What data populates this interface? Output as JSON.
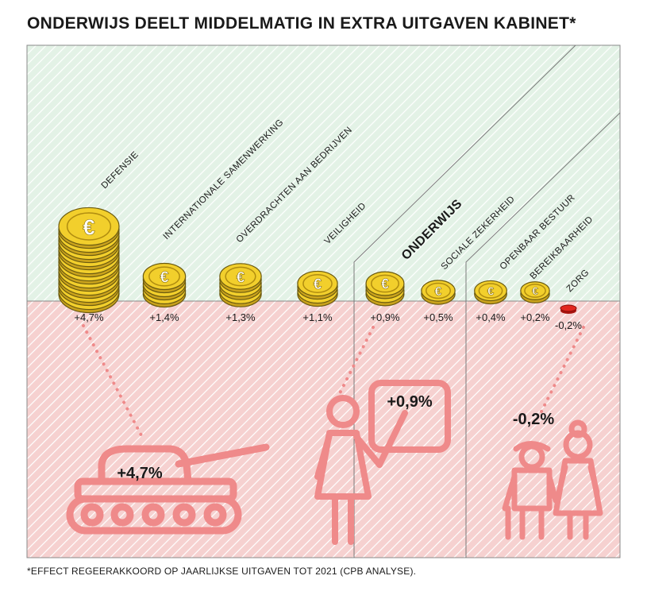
{
  "title": "ONDERWIJS DEELT MIDDELMATIG IN EXTRA UITGAVEN KABINET*",
  "footnote": "*EFFECT REGEERAKKOORD OP JAARLIJKSE UITGAVEN TOT 2021 (CPB ANALYSE).",
  "colors": {
    "positive_bg": "#e3f2e6",
    "negative_bg": "#f6d1d0",
    "coin_gold": "#f2cf2c",
    "coin_red": "#e2271f",
    "illustration": "#ef8a8a"
  },
  "chart_data": {
    "type": "bar",
    "categories": [
      "DEFENSIE",
      "INTERNATIONALE SAMENWERKING",
      "OVERDRACHTEN AAN BEDRIJVEN",
      "VEILIGHEID",
      "ONDERWIJS",
      "SOCIALE ZEKERHEID",
      "OPENBAAR BESTUUR",
      "BEREIKBAARHEID",
      "ZORG"
    ],
    "values": [
      4.7,
      1.4,
      1.3,
      1.1,
      0.9,
      0.5,
      0.4,
      0.2,
      -0.2
    ],
    "value_labels": [
      "+4,7%",
      "+1,4%",
      "+1,3%",
      "+1,1%",
      "+0,9%",
      "+0,5%",
      "+0,4%",
      "+0,2%",
      "-0,2%"
    ],
    "unit": "%",
    "highlight": "ONDERWIJS",
    "encoding": "coin stacks",
    "callouts": [
      {
        "category": "DEFENSIE",
        "label": "+4,7%",
        "icon": "tank-icon"
      },
      {
        "category": "ONDERWIJS",
        "label": "+0,9%",
        "icon": "teacher-icon"
      },
      {
        "category": "ZORG",
        "label": "-0,2%",
        "icon": "elderly-couple-icon"
      }
    ]
  }
}
